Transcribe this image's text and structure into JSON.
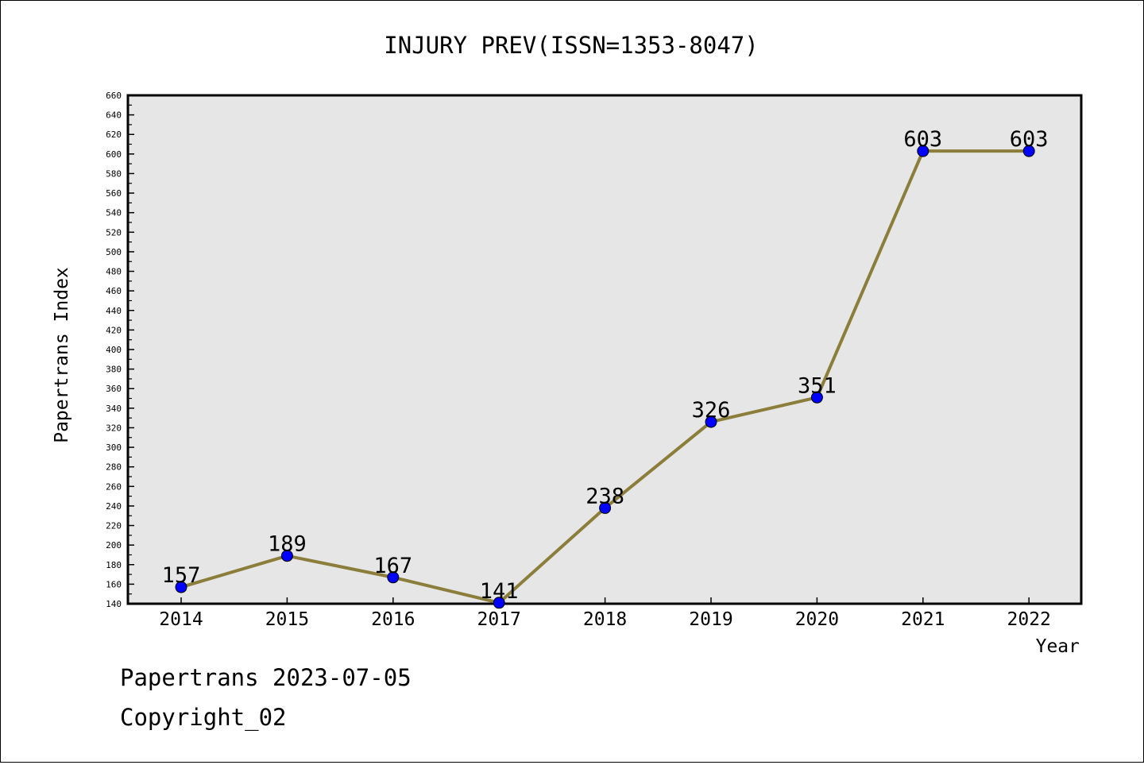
{
  "chart_data": {
    "type": "line",
    "title": "INJURY PREV(ISSN=1353-8047)",
    "xlabel": "Year",
    "ylabel": "Papertrans Index",
    "categories": [
      "2014",
      "2015",
      "2016",
      "2017",
      "2018",
      "2019",
      "2020",
      "2021",
      "2022"
    ],
    "series": [
      {
        "values": [
          157,
          189,
          167,
          141,
          238,
          326,
          351,
          603,
          603
        ]
      }
    ],
    "ylim": [
      140,
      660
    ],
    "ytick_step": 20,
    "yticks": [
      "140",
      "160",
      "180",
      "200",
      "220",
      "240",
      "260",
      "280",
      "300",
      "320",
      "340",
      "360",
      "380",
      "400",
      "420",
      "440",
      "460",
      "480",
      "500",
      "520",
      "540",
      "560",
      "580",
      "600",
      "620",
      "640",
      "660"
    ],
    "grid": false,
    "legend": "none",
    "colors": {
      "line": "#8B7D3A",
      "marker": "#0000FF",
      "plot_background": "#E6E6E6"
    }
  },
  "footer": {
    "line1": "Papertrans 2023-07-05",
    "line2": "Copyright_02"
  }
}
